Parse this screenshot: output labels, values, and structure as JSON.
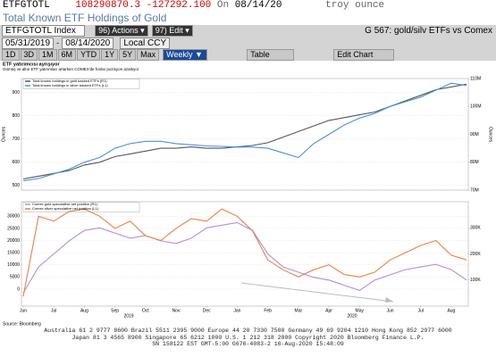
{
  "header": {
    "ticker": "ETFGTOTL",
    "price": "108290870.3",
    "change": "-127292.100",
    "on": "On",
    "date": "08/14/20",
    "unit": "troy ounce",
    "subtitle": "Total Known ETF Holdings of Gold"
  },
  "toolbar1": {
    "index": "ETFGTOTL Index",
    "actions_num": "96)",
    "actions": "Actions",
    "edit_num": "97)",
    "edit": "Edit",
    "title": "G 567: gold/silv ETFs vs Comex"
  },
  "toolbar2": {
    "start": "05/31/2019",
    "end": "08/14/2020",
    "ccy": "Local CCY"
  },
  "toolbar3": {
    "periods": [
      "1D",
      "3D",
      "1M",
      "6M",
      "YTD",
      "1Y",
      "5Y",
      "Max"
    ],
    "freq": "Weekly",
    "table": "Table",
    "edit_chart": "Edit Chart"
  },
  "chart_header": {
    "title": "ETF yatırımcısı ayrışıyor",
    "subtitle": "Gümüş ve altın ETF yatırımları artarken COMEX'de fonlar pozisyon azaltıyor"
  },
  "chart_data": [
    {
      "type": "line",
      "ylabel": "Ounces",
      "y2label": "Ounces",
      "ylim": [
        480,
        960
      ],
      "yticks": [
        500,
        600,
        700,
        800,
        900
      ],
      "y2lim": [
        70,
        110
      ],
      "y2ticks": [
        {
          "value": 70,
          "label": "70M"
        },
        {
          "value": 80,
          "label": "80M"
        },
        {
          "value": 90,
          "label": "90M"
        },
        {
          "value": 100,
          "label": "100M"
        },
        {
          "value": 110,
          "label": "110M"
        }
      ],
      "grid": true,
      "series": [
        {
          "name": "Total known holdings in gold backed ETFs (R1)",
          "color": "#555555",
          "axis": "y2",
          "values": [
            74,
            75,
            76,
            77,
            79,
            80,
            82,
            83,
            84,
            85,
            85,
            85.5,
            85,
            85,
            85.5,
            86,
            87,
            89,
            91,
            93,
            95,
            96,
            97,
            98,
            100,
            102,
            104,
            106,
            107,
            108
          ]
        },
        {
          "name": "Total known holdings in silver backed ETFs (L1)",
          "color": "#4a90e2",
          "values": [
            520,
            530,
            550,
            570,
            600,
            620,
            660,
            680,
            690,
            690,
            680,
            675,
            670,
            668,
            665,
            665,
            660,
            640,
            620,
            680,
            720,
            760,
            790,
            810,
            840,
            860,
            880,
            910,
            940,
            930
          ]
        }
      ]
    },
    {
      "type": "line",
      "categories": [
        "Jun",
        null,
        "Jul",
        null,
        "Aug",
        null,
        "Sep",
        null,
        "Oct",
        null,
        "Nov",
        null,
        "Dec",
        null,
        "Jan",
        null,
        "Feb",
        null,
        "Mar",
        null,
        "Apr",
        null,
        "May",
        null,
        "Jun",
        null,
        "Jul",
        null,
        "Aug",
        null
      ],
      "years": [
        "2019",
        "2020"
      ],
      "ylim": [
        -7000,
        36000
      ],
      "yticks": [
        0,
        5000,
        10000,
        15000,
        20000,
        25000,
        30000
      ],
      "y2lim": [
        0,
        400000
      ],
      "y2ticks": [
        {
          "value": 100000,
          "label": "100K"
        },
        {
          "value": 200000,
          "label": "200K"
        },
        {
          "value": 300000,
          "label": "300K"
        }
      ],
      "grid": true,
      "series": [
        {
          "name": "Comex gold speculative net position (R1)",
          "color": "#b48ce6",
          "axis": "y2",
          "values": [
            50000,
            150000,
            200000,
            250000,
            290000,
            300000,
            280000,
            260000,
            270000,
            250000,
            240000,
            260000,
            300000,
            310000,
            320000,
            290000,
            200000,
            150000,
            130000,
            110000,
            100000,
            80000,
            60000,
            100000,
            120000,
            140000,
            150000,
            160000,
            140000,
            100000
          ]
        },
        {
          "name": "Comex silver speculative net position (L1)",
          "color": "#f08040",
          "values": [
            -3000,
            30000,
            28000,
            32000,
            33000,
            30000,
            25000,
            28000,
            22000,
            20000,
            25000,
            29000,
            28000,
            33000,
            30000,
            24000,
            12000,
            8000,
            5000,
            8000,
            10000,
            6000,
            5000,
            7000,
            12000,
            15000,
            18000,
            20000,
            14000,
            12000
          ]
        }
      ]
    }
  ],
  "source": "Source: Bloomberg",
  "footer": [
    "Australia 61 2 9777 8600 Brazil 5511 2395 9000 Europe 44 20 7330 7500 Germany 49 69 9204 1210 Hong Kong 852 2977 6000",
    "Japan 81 3 4565 8900 Singapore 65 6212 1000 U.S. 1 212 318 2000 Copyright 2020 Bloomberg Finance L.P.",
    "SN 158122 EST GMT-5:00 G676-4083-2 16-Aug-2020 15:48:09"
  ]
}
